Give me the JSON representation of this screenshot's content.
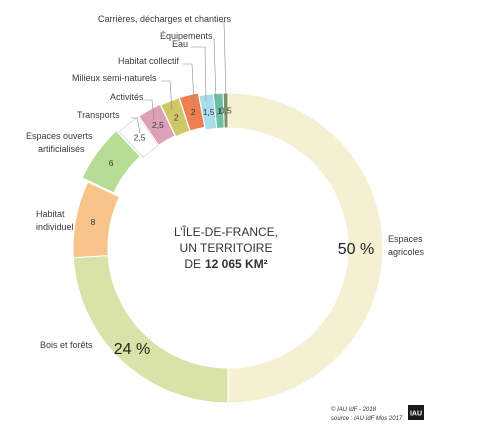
{
  "chart_data": {
    "type": "pie",
    "donut": true,
    "center_text": [
      "L’ÎLE-DE-FRANCE,",
      "UN TERRITOIRE",
      "DE",
      "12 065 KM²"
    ],
    "slices": [
      {
        "label": "Espaces agricoles",
        "value": 50,
        "value_label": "50 %",
        "color": "#f6f0d3"
      },
      {
        "label": "Bois et forêts",
        "value": 24,
        "value_label": "24 %",
        "color": "#d9e2a8"
      },
      {
        "label": "Habitat individuel",
        "value": 8,
        "value_label": "8",
        "color": "#f8c48a"
      },
      {
        "label": "Espaces ouverts artificialisés",
        "value": 6,
        "value_label": "6",
        "color": "#b7dc93"
      },
      {
        "label": "Transports",
        "value": 2.5,
        "value_label": "2,5",
        "color": "#ffffff"
      },
      {
        "label": "Activités",
        "value": 2.5,
        "value_label": "2,5",
        "color": "#dea0b4"
      },
      {
        "label": "Milieux semi-naturels",
        "value": 2,
        "value_label": "2",
        "color": "#cfc766"
      },
      {
        "label": "Habitat collectif",
        "value": 2,
        "value_label": "2",
        "color": "#ee7f53"
      },
      {
        "label": "Eau",
        "value": 1.5,
        "value_label": "1,5",
        "color": "#a9dcec"
      },
      {
        "label": "Équipements",
        "value": 1,
        "value_label": "1",
        "color": "#6cbfa3"
      },
      {
        "label": "Carrières, décharges et chantiers",
        "value": 0.5,
        "value_label": "0,5",
        "color": "#7a8f66"
      }
    ]
  },
  "credits": {
    "line1": "© IAU îdF - 2018",
    "line2": "source : IAU îdF Mos 2017",
    "logo": "IAU"
  }
}
